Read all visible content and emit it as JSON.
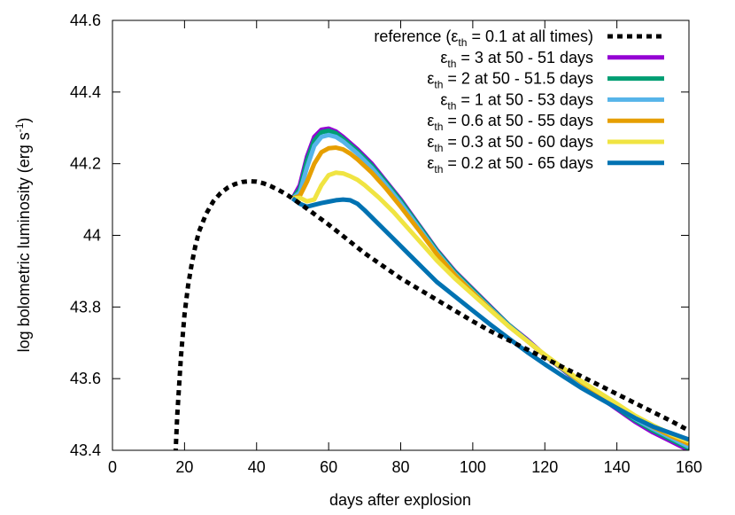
{
  "chart_data": {
    "type": "line",
    "xlabel": "days after explosion",
    "ylabel": {
      "main": "log bolometric luminosity (erg s",
      "sup": "-1",
      "end": ")"
    },
    "xlim": [
      0,
      160
    ],
    "ylim": [
      43.4,
      44.6
    ],
    "xticks": [
      {
        "v": 0,
        "label": "0"
      },
      {
        "v": 20,
        "label": "20"
      },
      {
        "v": 40,
        "label": "40"
      },
      {
        "v": 60,
        "label": "60"
      },
      {
        "v": 80,
        "label": "80"
      },
      {
        "v": 100,
        "label": "100"
      },
      {
        "v": 120,
        "label": "120"
      },
      {
        "v": 140,
        "label": "140"
      },
      {
        "v": 160,
        "label": "160"
      }
    ],
    "yticks": [
      {
        "v": 43.4,
        "label": "43.4"
      },
      {
        "v": 43.6,
        "label": "43.6"
      },
      {
        "v": 43.8,
        "label": "43.8"
      },
      {
        "v": 44.0,
        "label": "44"
      },
      {
        "v": 44.2,
        "label": "44.2"
      },
      {
        "v": 44.4,
        "label": "44.4"
      },
      {
        "v": 44.6,
        "label": "44.6"
      }
    ],
    "grid": false,
    "legend_position": "top-right",
    "reference": {
      "legend": {
        "pre": "reference (",
        "eps": "ε",
        "sub": "th",
        "post": " = 0.1 at all times)"
      },
      "color": "#000000",
      "dashed": true,
      "x": [
        17.5,
        18,
        19,
        20,
        21,
        22,
        23,
        24,
        26,
        28,
        30,
        32,
        34,
        36,
        38,
        40,
        42,
        44,
        46,
        48,
        50,
        55,
        60,
        65,
        70,
        75,
        80,
        85,
        90,
        95,
        100,
        105,
        110,
        115,
        120,
        125,
        130,
        135,
        140,
        145,
        150,
        155,
        160
      ],
      "y": [
        43.39,
        43.5,
        43.66,
        43.78,
        43.86,
        43.92,
        43.97,
        44.01,
        44.06,
        44.095,
        44.118,
        44.133,
        44.143,
        44.149,
        44.151,
        44.15,
        44.145,
        44.137,
        44.127,
        44.116,
        44.103,
        44.067,
        44.03,
        43.99,
        43.95,
        43.915,
        43.88,
        43.85,
        43.82,
        43.79,
        43.76,
        43.732,
        43.707,
        43.682,
        43.657,
        43.632,
        43.607,
        43.582,
        43.557,
        43.532,
        43.507,
        43.482,
        43.455
      ]
    },
    "series": [
      {
        "legend": {
          "pre": "",
          "eps": "ε",
          "sub": "th",
          "post": " = 3 at 50 - 51 days"
        },
        "color": "#9400d3",
        "x": [
          50,
          52,
          54,
          56,
          58,
          60,
          62,
          64,
          68,
          72,
          76,
          80,
          85,
          90,
          95,
          100,
          105,
          110,
          115,
          120,
          125,
          130,
          135,
          140,
          145,
          150,
          155,
          160
        ],
        "y": [
          44.103,
          44.14,
          44.22,
          44.275,
          44.295,
          44.298,
          44.29,
          44.275,
          44.24,
          44.2,
          44.15,
          44.1,
          44.03,
          43.96,
          43.9,
          43.85,
          43.8,
          43.75,
          43.71,
          43.665,
          43.625,
          43.585,
          43.55,
          43.515,
          43.48,
          43.45,
          43.425,
          43.4
        ]
      },
      {
        "legend": {
          "pre": "",
          "eps": "ε",
          "sub": "th",
          "post": " = 2 at 50 - 51.5 days"
        },
        "color": "#009e73",
        "x": [
          50,
          52,
          54,
          56,
          58,
          60,
          62,
          64,
          68,
          72,
          76,
          80,
          85,
          90,
          95,
          100,
          105,
          110,
          115,
          120,
          125,
          130,
          135,
          140,
          145,
          150,
          155,
          160
        ],
        "y": [
          44.103,
          44.13,
          44.21,
          44.265,
          44.288,
          44.292,
          44.285,
          44.27,
          44.235,
          44.195,
          44.147,
          44.097,
          44.028,
          43.958,
          43.898,
          43.848,
          43.798,
          43.75,
          43.708,
          43.665,
          43.626,
          43.587,
          43.552,
          43.518,
          43.484,
          43.455,
          43.43,
          43.405
        ]
      },
      {
        "legend": {
          "pre": "",
          "eps": "ε",
          "sub": "th",
          "post": " = 1 at 50 - 53 days"
        },
        "color": "#56b4e9",
        "x": [
          50,
          52,
          54,
          56,
          58,
          60,
          62,
          64,
          68,
          72,
          76,
          80,
          85,
          90,
          95,
          100,
          105,
          110,
          115,
          120,
          125,
          130,
          135,
          140,
          145,
          150,
          155,
          160
        ],
        "y": [
          44.103,
          44.12,
          44.19,
          44.25,
          44.275,
          44.28,
          44.275,
          44.262,
          44.228,
          44.188,
          44.14,
          44.09,
          44.022,
          43.953,
          43.893,
          43.843,
          43.795,
          43.748,
          43.707,
          43.665,
          43.627,
          43.589,
          43.555,
          43.522,
          43.488,
          43.46,
          43.435,
          43.41
        ]
      },
      {
        "legend": {
          "pre": "",
          "eps": "ε",
          "sub": "th",
          "post": " = 0.6 at 50 - 55 days"
        },
        "color": "#e69f00",
        "x": [
          50,
          52,
          54,
          56,
          58,
          60,
          62,
          64,
          66,
          68,
          72,
          76,
          80,
          85,
          90,
          95,
          100,
          105,
          110,
          115,
          120,
          125,
          130,
          135,
          140,
          145,
          150,
          155,
          160
        ],
        "y": [
          44.103,
          44.11,
          44.15,
          44.2,
          44.232,
          44.243,
          44.245,
          44.24,
          44.228,
          44.212,
          44.175,
          44.13,
          44.08,
          44.015,
          43.948,
          43.89,
          43.84,
          43.792,
          43.746,
          43.706,
          43.665,
          43.628,
          43.591,
          43.558,
          43.525,
          43.492,
          43.465,
          43.44,
          43.418
        ]
      },
      {
        "legend": {
          "pre": "",
          "eps": "ε",
          "sub": "th",
          "post": " = 0.3 at 50 - 60 days"
        },
        "color": "#f0e442",
        "x": [
          50,
          52,
          54,
          56,
          58,
          60,
          62,
          64,
          66,
          68,
          70,
          74,
          78,
          82,
          86,
          90,
          95,
          100,
          105,
          110,
          115,
          120,
          125,
          130,
          135,
          140,
          145,
          150,
          155,
          160
        ],
        "y": [
          44.103,
          44.105,
          44.095,
          44.1,
          44.14,
          44.168,
          44.175,
          44.173,
          44.165,
          44.155,
          44.14,
          44.105,
          44.065,
          44.02,
          43.975,
          43.93,
          43.88,
          43.835,
          43.79,
          43.746,
          43.706,
          43.667,
          43.63,
          43.594,
          43.562,
          43.53,
          43.497,
          43.47,
          43.445,
          43.425
        ]
      },
      {
        "legend": {
          "pre": "",
          "eps": "ε",
          "sub": "th",
          "post": " = 0.2 at 50 - 65 days"
        },
        "color": "#0072b2",
        "x": [
          50,
          52,
          54,
          56,
          58,
          60,
          62,
          64,
          66,
          68,
          70,
          74,
          78,
          82,
          86,
          90,
          95,
          100,
          105,
          110,
          115,
          120,
          125,
          130,
          135,
          140,
          145,
          150,
          155,
          160
        ],
        "y": [
          44.103,
          44.088,
          44.08,
          44.085,
          44.09,
          44.094,
          44.098,
          44.1,
          44.098,
          44.088,
          44.07,
          44.03,
          43.99,
          43.95,
          43.91,
          43.87,
          43.83,
          43.79,
          43.75,
          43.712,
          43.675,
          43.64,
          43.607,
          43.575,
          43.546,
          43.518,
          43.49,
          43.466,
          43.448,
          43.43
        ]
      }
    ]
  }
}
